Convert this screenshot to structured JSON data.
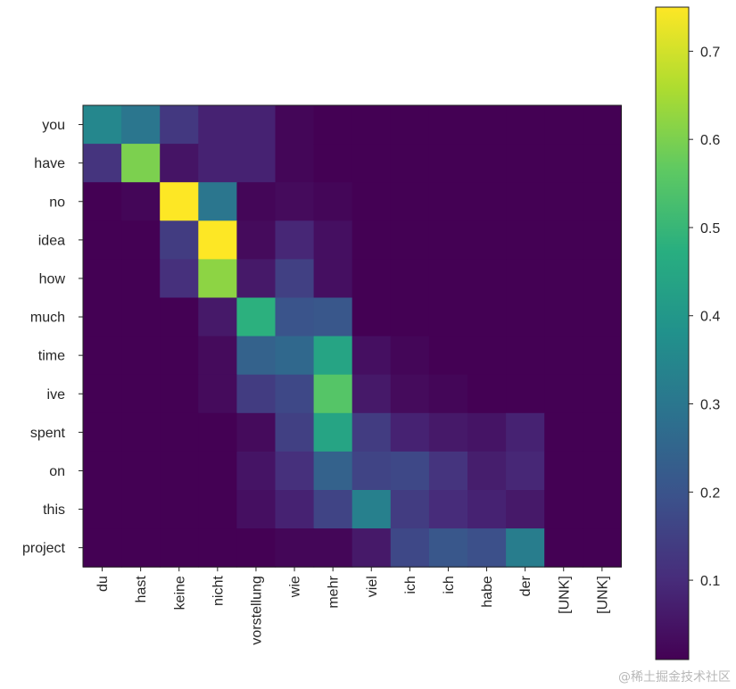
{
  "chart_data": {
    "type": "heatmap",
    "colormap": "viridis",
    "x_labels": [
      "du",
      "hast",
      "keine",
      "nicht",
      "vorstellung",
      "wie",
      "mehr",
      "viel",
      "ich",
      "ich",
      "habe",
      "der",
      "[UNK]",
      "[UNK]"
    ],
    "y_labels": [
      "you",
      "have",
      "no",
      "idea",
      "how",
      "much",
      "time",
      "ive",
      "spent",
      "on",
      "this",
      "project"
    ],
    "values": [
      [
        0.35,
        0.3,
        0.13,
        0.08,
        0.08,
        0.02,
        0.01,
        0.01,
        0.01,
        0.01,
        0.01,
        0.01,
        0.01,
        0.01
      ],
      [
        0.12,
        0.6,
        0.05,
        0.08,
        0.08,
        0.02,
        0.01,
        0.01,
        0.01,
        0.01,
        0.01,
        0.01,
        0.01,
        0.01
      ],
      [
        0.01,
        0.02,
        0.75,
        0.3,
        0.02,
        0.03,
        0.02,
        0.01,
        0.01,
        0.01,
        0.01,
        0.01,
        0.01,
        0.01
      ],
      [
        0.01,
        0.01,
        0.14,
        0.75,
        0.03,
        0.09,
        0.04,
        0.01,
        0.01,
        0.01,
        0.01,
        0.01,
        0.01,
        0.01
      ],
      [
        0.01,
        0.01,
        0.11,
        0.62,
        0.06,
        0.15,
        0.04,
        0.01,
        0.01,
        0.01,
        0.01,
        0.01,
        0.01,
        0.01
      ],
      [
        0.01,
        0.01,
        0.01,
        0.06,
        0.48,
        0.2,
        0.21,
        0.01,
        0.01,
        0.01,
        0.01,
        0.01,
        0.01,
        0.01
      ],
      [
        0.01,
        0.01,
        0.01,
        0.03,
        0.24,
        0.26,
        0.44,
        0.04,
        0.02,
        0.01,
        0.01,
        0.01,
        0.01,
        0.01
      ],
      [
        0.01,
        0.01,
        0.01,
        0.03,
        0.14,
        0.17,
        0.55,
        0.06,
        0.03,
        0.02,
        0.01,
        0.01,
        0.01,
        0.01
      ],
      [
        0.01,
        0.01,
        0.01,
        0.01,
        0.03,
        0.15,
        0.44,
        0.14,
        0.08,
        0.06,
        0.05,
        0.08,
        0.01,
        0.01
      ],
      [
        0.01,
        0.01,
        0.01,
        0.01,
        0.05,
        0.11,
        0.24,
        0.16,
        0.17,
        0.12,
        0.07,
        0.09,
        0.01,
        0.01
      ],
      [
        0.01,
        0.01,
        0.01,
        0.01,
        0.04,
        0.08,
        0.16,
        0.33,
        0.14,
        0.1,
        0.08,
        0.06,
        0.01,
        0.01
      ],
      [
        0.01,
        0.01,
        0.01,
        0.01,
        0.01,
        0.02,
        0.02,
        0.06,
        0.17,
        0.21,
        0.19,
        0.32,
        0.01,
        0.01
      ]
    ],
    "colorbar": {
      "min": 0.01,
      "max": 0.75,
      "ticks": [
        0.1,
        0.2,
        0.3,
        0.4,
        0.5,
        0.6,
        0.7
      ],
      "tick_labels": [
        "0.1",
        "0.2",
        "0.3",
        "0.4",
        "0.5",
        "0.6",
        "0.7"
      ]
    },
    "title": "",
    "xlabel": "",
    "ylabel": ""
  },
  "watermark": "@稀土掘金技术社区"
}
